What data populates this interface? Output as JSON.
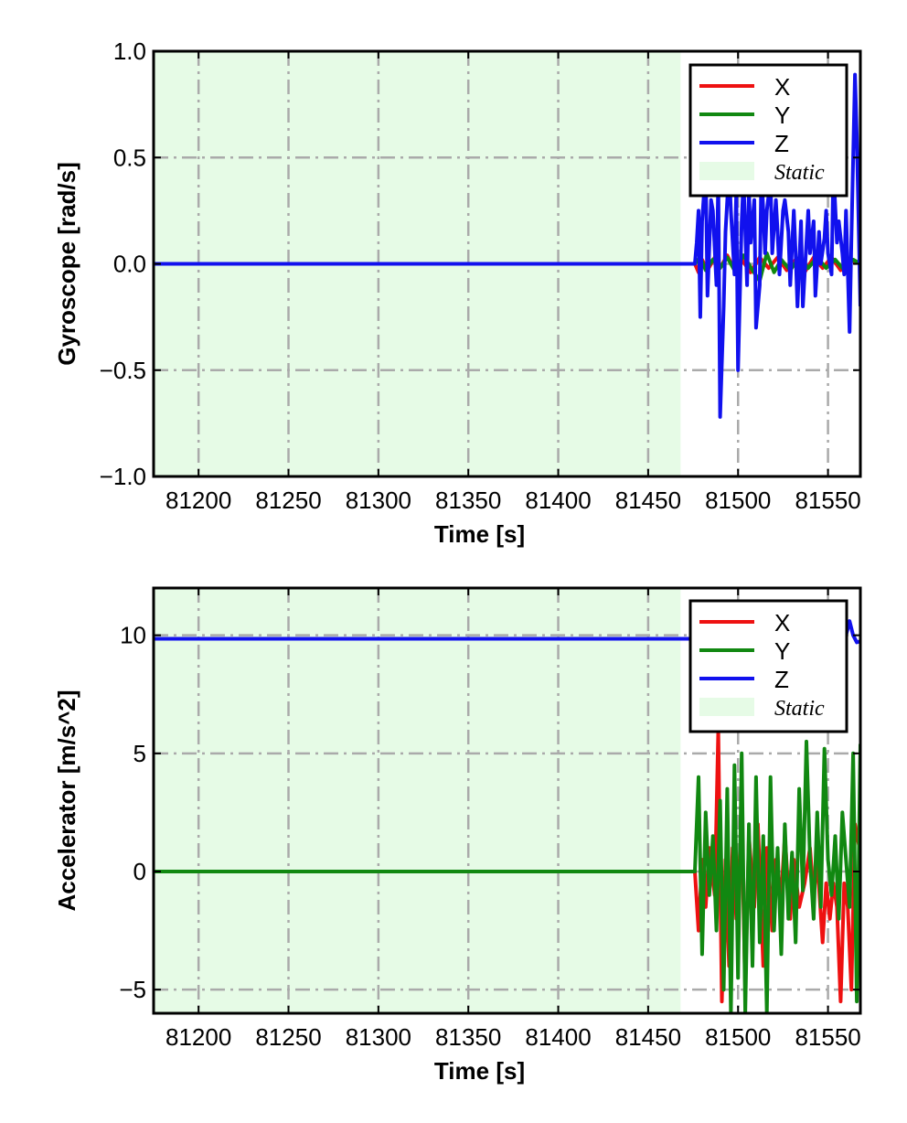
{
  "chart_data": [
    {
      "type": "line",
      "xlabel": "Time [s]",
      "ylabel": "Gyroscope [rad/s]",
      "xlim": [
        81175,
        81568
      ],
      "ylim": [
        -1.0,
        1.0
      ],
      "xticks": [
        81200,
        81250,
        81300,
        81350,
        81400,
        81450,
        81500,
        81550
      ],
      "xtick_labels": [
        "81200",
        "81250",
        "81300",
        "81350",
        "81400",
        "81450",
        "81500",
        "81550"
      ],
      "yticks": [
        -1.0,
        -0.5,
        0.0,
        0.5,
        1.0
      ],
      "ytick_labels": [
        "−1.0",
        "−0.5",
        "0.0",
        "0.5",
        "1.0"
      ],
      "grid": true,
      "legend_position": "top-right",
      "static_region": {
        "label": "Static",
        "x": [
          81175,
          81468
        ],
        "color": "#e6fbe6"
      },
      "series": [
        {
          "name": "X",
          "color": "#ee1111",
          "x": [
            81175,
            81476,
            81478,
            81480,
            81483,
            81487,
            81490,
            81494,
            81498,
            81502,
            81507,
            81512,
            81517,
            81522,
            81527,
            81532,
            81537,
            81542,
            81547,
            81552,
            81557,
            81562,
            81568
          ],
          "y": [
            0.0,
            0.0,
            -0.04,
            0.02,
            -0.03,
            0.03,
            -0.02,
            0.04,
            -0.03,
            0.02,
            -0.04,
            0.03,
            -0.02,
            0.03,
            -0.03,
            0.02,
            -0.04,
            0.03,
            -0.02,
            0.03,
            -0.03,
            0.02,
            0.0
          ]
        },
        {
          "name": "Y",
          "color": "#118811",
          "x": [
            81175,
            81476,
            81479,
            81482,
            81486,
            81490,
            81494,
            81498,
            81503,
            81508,
            81512,
            81516,
            81520,
            81524,
            81529,
            81534,
            81539,
            81544,
            81549,
            81554,
            81559,
            81564,
            81568
          ],
          "y": [
            0.0,
            0.0,
            0.03,
            -0.03,
            0.02,
            -0.02,
            0.03,
            -0.03,
            0.04,
            -0.03,
            -0.08,
            0.05,
            -0.04,
            0.02,
            -0.03,
            0.03,
            -0.02,
            0.03,
            -0.02,
            0.02,
            -0.03,
            0.02,
            0.0
          ]
        },
        {
          "name": "Z",
          "color": "#1111ee",
          "x": [
            81175,
            81476,
            81477,
            81478,
            81479,
            81480,
            81482,
            81483,
            81485,
            81486,
            81488,
            81489,
            81490,
            81492,
            81493,
            81495,
            81496,
            81498,
            81499,
            81500,
            81502,
            81503,
            81505,
            81506,
            81507,
            81509,
            81510,
            81512,
            81513,
            81515,
            81516,
            81518,
            81519,
            81521,
            81522,
            81523,
            81525,
            81526,
            81528,
            81529,
            81531,
            81532,
            81533,
            81535,
            81536,
            81538,
            81539,
            81540,
            81542,
            81543,
            81545,
            81546,
            81548,
            81549,
            81550,
            81552,
            81553,
            81555,
            81556,
            81558,
            81559,
            81560,
            81562,
            81563,
            81565,
            81566,
            81568
          ],
          "y": [
            0.0,
            0.0,
            0.1,
            0.25,
            -0.25,
            0.2,
            0.45,
            -0.15,
            0.3,
            0.25,
            -0.1,
            0.4,
            -0.72,
            -0.2,
            0.15,
            0.45,
            0.25,
            -0.05,
            0.35,
            -0.5,
            0.2,
            0.4,
            -0.1,
            0.35,
            0.1,
            0.3,
            -0.3,
            -0.1,
            0.45,
            0.05,
            0.25,
            0.4,
            0.05,
            0.3,
            0.15,
            -0.05,
            0.25,
            0.3,
            0.15,
            -0.1,
            0.25,
            0.05,
            -0.2,
            0.2,
            -0.2,
            0.1,
            0.25,
            0.05,
            0.2,
            -0.15,
            0.15,
            0.0,
            0.12,
            0.25,
            0.05,
            -0.05,
            0.45,
            0.1,
            0.2,
            0.05,
            -0.05,
            0.25,
            -0.32,
            0.12,
            0.89,
            0.6,
            -0.2
          ]
        }
      ]
    },
    {
      "type": "line",
      "xlabel": "Time [s]",
      "ylabel": "Accelerator [m/s^2]",
      "xlim": [
        81175,
        81568
      ],
      "ylim": [
        -6.0,
        12.0
      ],
      "xticks": [
        81200,
        81250,
        81300,
        81350,
        81400,
        81450,
        81500,
        81550
      ],
      "xtick_labels": [
        "81200",
        "81250",
        "81300",
        "81350",
        "81400",
        "81450",
        "81500",
        "81550"
      ],
      "yticks": [
        -5,
        0,
        5,
        10
      ],
      "ytick_labels": [
        "−5",
        "0",
        "5",
        "10"
      ],
      "grid": true,
      "legend_position": "top-right",
      "static_region": {
        "label": "Static",
        "x": [
          81175,
          81468
        ],
        "color": "#e6fbe6"
      },
      "series": [
        {
          "name": "X",
          "color": "#ee1111",
          "x": [
            81175,
            81476,
            81478,
            81480,
            81482,
            81484,
            81487,
            81489,
            81491,
            81493,
            81495,
            81497,
            81499,
            81502,
            81504,
            81506,
            81509,
            81511,
            81514,
            81516,
            81519,
            81521,
            81524,
            81526,
            81529,
            81531,
            81534,
            81537,
            81540,
            81542,
            81544,
            81547,
            81549,
            81551,
            81553,
            81555,
            81557,
            81559,
            81561,
            81563,
            81565,
            81568
          ],
          "y": [
            0.0,
            0.0,
            -2.5,
            0.5,
            -1.5,
            1.0,
            -1.0,
            6.0,
            -5.5,
            0.5,
            -4.0,
            1.0,
            -2.0,
            2.0,
            -5.0,
            1.5,
            -1.5,
            2.0,
            -4.0,
            1.0,
            -2.5,
            0.5,
            -1.0,
            1.5,
            -2.0,
            0.5,
            -1.5,
            -0.5,
            1.0,
            -1.0,
            0.5,
            -3.0,
            -0.5,
            -2.0,
            -0.5,
            -1.5,
            -5.5,
            -0.5,
            -1.5,
            -5.0,
            2.0,
            0.8
          ]
        },
        {
          "name": "Y",
          "color": "#118811",
          "x": [
            81175,
            81476,
            81478,
            81480,
            81482,
            81484,
            81486,
            81488,
            81490,
            81492,
            81494,
            81496,
            81498,
            81500,
            81502,
            81504,
            81506,
            81508,
            81510,
            81512,
            81514,
            81516,
            81518,
            81520,
            81522,
            81524,
            81526,
            81528,
            81530,
            81532,
            81534,
            81536,
            81538,
            81540,
            81542,
            81544,
            81546,
            81548,
            81550,
            81552,
            81554,
            81556,
            81558,
            81560,
            81562,
            81564,
            81566,
            81568
          ],
          "y": [
            0.0,
            0.0,
            4.0,
            -3.5,
            2.5,
            -1.0,
            1.5,
            -2.5,
            3.0,
            -5.0,
            3.5,
            -6.0,
            4.5,
            -4.5,
            5.0,
            -6.0,
            2.0,
            -4.0,
            4.0,
            -3.0,
            1.5,
            -6.0,
            4.0,
            -2.5,
            1.0,
            -3.5,
            2.0,
            -2.0,
            0.8,
            -3.0,
            3.5,
            -0.8,
            5.5,
            0.5,
            -2.0,
            2.5,
            -1.5,
            5.2,
            0.5,
            -1.0,
            1.5,
            -2.0,
            2.5,
            0.5,
            -1.5,
            5.0,
            -5.5,
            5.4
          ]
        },
        {
          "name": "Z",
          "color": "#1111ee",
          "x": [
            81175,
            81476,
            81480,
            81485,
            81490,
            81495,
            81500,
            81505,
            81510,
            81515,
            81520,
            81525,
            81530,
            81535,
            81540,
            81545,
            81550,
            81555,
            81558,
            81560,
            81562,
            81564,
            81566,
            81568
          ],
          "y": [
            9.85,
            9.85,
            9.8,
            9.9,
            9.75,
            9.85,
            9.9,
            9.8,
            9.85,
            9.9,
            9.8,
            9.85,
            9.9,
            9.8,
            9.85,
            9.9,
            9.8,
            9.85,
            9.9,
            10.0,
            10.6,
            10.0,
            9.7,
            9.75
          ]
        }
      ]
    }
  ]
}
